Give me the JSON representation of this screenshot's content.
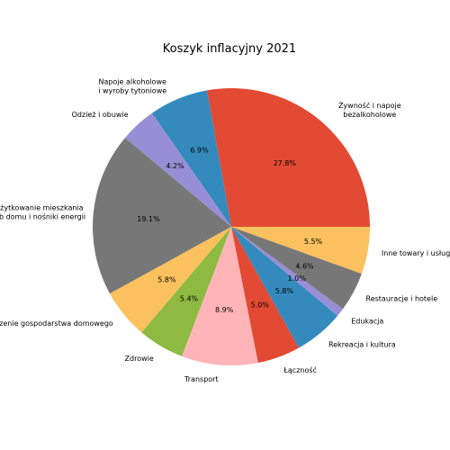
{
  "chart_data": {
    "type": "pie",
    "title": "Koszyk inflacyjny 2021",
    "start_angle_deg": 0,
    "direction": "counterclockwise",
    "slices": [
      {
        "label": "Żywność i napoje\nbezalkoholowe",
        "value": 27.8,
        "pct_label": "27.8%",
        "color": "#e24a33"
      },
      {
        "label": "Napoje alkoholowe\ni wyroby tytoniowe",
        "value": 6.9,
        "pct_label": "6.9%",
        "color": "#348abd"
      },
      {
        "label": "Odzież i obuwie",
        "value": 4.2,
        "pct_label": "4.2%",
        "color": "#988ed5"
      },
      {
        "label": "Użytkowanie mieszkania\nlub domu i nośniki energii",
        "value": 19.1,
        "pct_label": "19.1%",
        "color": "#777777"
      },
      {
        "label": "Wyposażenie mieszkania i prowadzenie gospodarstwa domowego",
        "value": 5.8,
        "pct_label": "5.8%",
        "color": "#fbc15e"
      },
      {
        "label": "Zdrowie",
        "value": 5.4,
        "pct_label": "5.4%",
        "color": "#8eba42"
      },
      {
        "label": "Transport",
        "value": 8.9,
        "pct_label": "8.9%",
        "color": "#ffb5b8"
      },
      {
        "label": "Łączność",
        "value": 5.0,
        "pct_label": "5.0%",
        "color": "#e24a33"
      },
      {
        "label": "Rekreacja i kultura",
        "value": 5.8,
        "pct_label": "5.8%",
        "color": "#348abd"
      },
      {
        "label": "Edukacja",
        "value": 1.0,
        "pct_label": "1.0%",
        "color": "#988ed5"
      },
      {
        "label": "Restauracje i hotele",
        "value": 4.6,
        "pct_label": "4.6%",
        "color": "#777777"
      },
      {
        "label": "Inne towary i usługi",
        "value": 5.5,
        "pct_label": "5.5%",
        "color": "#fbc15e"
      }
    ]
  }
}
